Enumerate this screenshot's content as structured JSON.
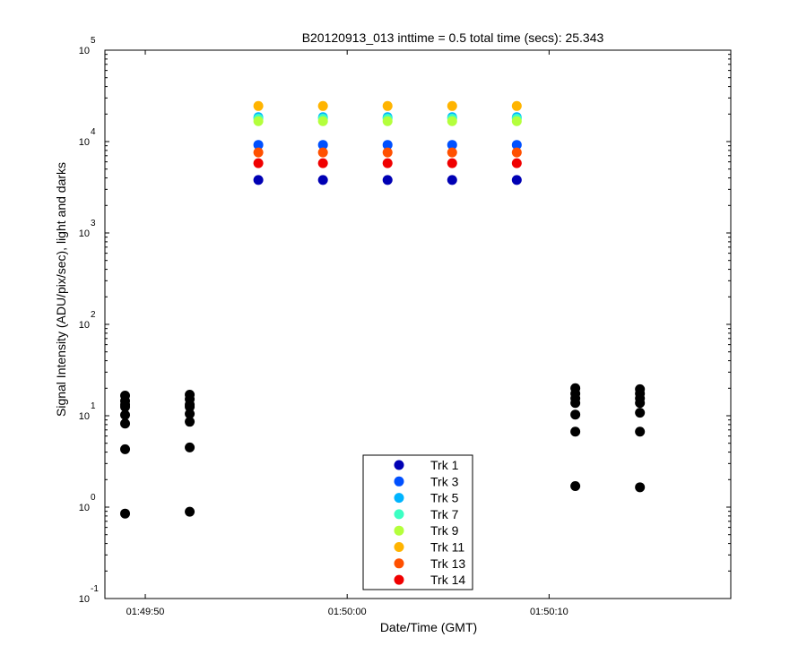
{
  "chart_data": {
    "type": "scatter",
    "title": "B20120913_013 inttime = 0.5 total time (secs): 25.343",
    "xlabel": "Date/Time (GMT)",
    "ylabel": "Signal Intensity (ADU/pix/sec), light and darks",
    "yscale": "log",
    "ylim": [
      0.1,
      100000
    ],
    "xlim": [
      "01:49:48",
      "01:50:19"
    ],
    "grid": false,
    "legend_position": "bottom-center",
    "x_ticks": [
      {
        "value": "01:49:50",
        "label": "01:49:50"
      },
      {
        "value": "01:50:00",
        "label": "01:50:00"
      },
      {
        "value": "01:50:10",
        "label": "01:50:10"
      }
    ],
    "y_ticks": [
      {
        "value": 0.1,
        "base": "10",
        "exp": "-1"
      },
      {
        "value": 1,
        "base": "10",
        "exp": "0"
      },
      {
        "value": 10,
        "base": "10",
        "exp": "1"
      },
      {
        "value": 100,
        "base": "10",
        "exp": "2"
      },
      {
        "value": 1000,
        "base": "10",
        "exp": "3"
      },
      {
        "value": 10000,
        "base": "10",
        "exp": "4"
      },
      {
        "value": 100000,
        "base": "10",
        "exp": "5"
      }
    ],
    "light_times": [
      "01:49:55.6",
      "01:49:58.8",
      "01:50:02.0",
      "01:50:05.2",
      "01:50:08.4"
    ],
    "series": [
      {
        "name": "Trk 1",
        "color": "#0000b4",
        "values": [
          3800,
          3800,
          3800,
          3800,
          3800
        ]
      },
      {
        "name": "Trk 3",
        "color": "#0050ff",
        "values": [
          9200,
          9200,
          9200,
          9200,
          9200
        ]
      },
      {
        "name": "Trk 5",
        "color": "#00b4ff",
        "values": [
          18500,
          18500,
          18500,
          18500,
          18500
        ]
      },
      {
        "name": "Trk 7",
        "color": "#3cffc3",
        "values": [
          17800,
          17800,
          17800,
          17800,
          17800
        ]
      },
      {
        "name": "Trk 9",
        "color": "#b4ff3c",
        "values": [
          16700,
          16700,
          16700,
          16700,
          16700
        ]
      },
      {
        "name": "Trk 11",
        "color": "#ffb400",
        "values": [
          24500,
          24500,
          24500,
          24500,
          24500
        ]
      },
      {
        "name": "Trk 13",
        "color": "#ff5000",
        "values": [
          7600,
          7600,
          7600,
          7600,
          7600
        ]
      },
      {
        "name": "Trk 14",
        "color": "#f00000",
        "values": [
          5800,
          5800,
          5800,
          5800,
          5800
        ]
      }
    ],
    "darks": {
      "color": "#000000",
      "groups": [
        {
          "time": "01:49:49.0",
          "values": [
            16.6,
            14.5,
            13.2,
            12.5,
            10.2,
            8.2,
            4.3,
            0.85
          ]
        },
        {
          "time": "01:49:52.2",
          "values": [
            17.0,
            15.2,
            13.2,
            12.5,
            10.5,
            8.6,
            4.5,
            0.89
          ]
        },
        {
          "time": "01:50:11.3",
          "values": [
            20.0,
            17.5,
            15.5,
            13.8,
            10.3,
            6.7,
            1.7
          ]
        },
        {
          "time": "01:50:14.5",
          "values": [
            19.5,
            17.5,
            15.5,
            13.8,
            10.8,
            6.7,
            1.65
          ]
        }
      ]
    }
  }
}
